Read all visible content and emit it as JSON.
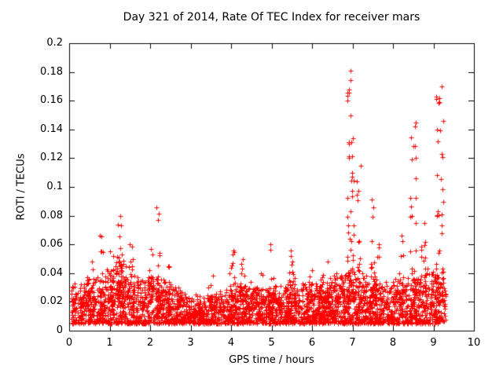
{
  "chart_data": {
    "type": "scatter",
    "title": "Day 321 of 2014, Rate Of TEC Index for receiver mars",
    "xlabel": "GPS time / hours",
    "ylabel": "ROTI / TECUs",
    "xlim": [
      0,
      10
    ],
    "ylim": [
      0,
      0.2
    ],
    "grid": false,
    "legend": "none",
    "series_name": "ROTI",
    "x_ticks": [
      0,
      1,
      2,
      3,
      4,
      5,
      6,
      7,
      8,
      9,
      10
    ],
    "x_tick_labels": [
      "0",
      "1",
      "2",
      "3",
      "4",
      "5",
      "6",
      "7",
      "8",
      "9",
      "10"
    ],
    "y_ticks": [
      0,
      0.02,
      0.04,
      0.06,
      0.08,
      0.1,
      0.12,
      0.14,
      0.16,
      0.18,
      0.2
    ],
    "y_tick_labels": [
      "0",
      "0.02",
      "0.04",
      "0.06",
      "0.08",
      "0.1",
      "0.12",
      "0.14",
      "0.16",
      "0.18",
      "0.2"
    ],
    "marker": {
      "shape": "plus",
      "color": "#ff0000",
      "size": 6
    },
    "data_coverage": {
      "x_start": 0.05,
      "x_end": 9.3
    },
    "baseline_band": {
      "points": 3200,
      "y_min": 0.005,
      "y_typical": 0.016,
      "envelope": [
        {
          "x": 0.0,
          "top": 0.03
        },
        {
          "x": 0.6,
          "top": 0.034
        },
        {
          "x": 1.3,
          "top": 0.046
        },
        {
          "x": 1.8,
          "top": 0.034
        },
        {
          "x": 2.3,
          "top": 0.034
        },
        {
          "x": 3.0,
          "top": 0.022
        },
        {
          "x": 3.8,
          "top": 0.026
        },
        {
          "x": 4.3,
          "top": 0.032
        },
        {
          "x": 5.0,
          "top": 0.028
        },
        {
          "x": 5.6,
          "top": 0.032
        },
        {
          "x": 6.3,
          "top": 0.032
        },
        {
          "x": 7.0,
          "top": 0.04
        },
        {
          "x": 7.8,
          "top": 0.032
        },
        {
          "x": 8.6,
          "top": 0.038
        },
        {
          "x": 9.2,
          "top": 0.04
        },
        {
          "x": 9.3,
          "top": 0.034
        }
      ]
    },
    "spikes": [
      {
        "x": 0.5,
        "width": 0.15,
        "peak": 0.048,
        "points": 12
      },
      {
        "x": 0.8,
        "width": 0.1,
        "peak": 0.066,
        "points": 10
      },
      {
        "x": 1.05,
        "width": 0.1,
        "peak": 0.055,
        "points": 14
      },
      {
        "x": 1.3,
        "width": 0.25,
        "peak": 0.08,
        "points": 40
      },
      {
        "x": 1.55,
        "width": 0.1,
        "peak": 0.06,
        "points": 12
      },
      {
        "x": 2.0,
        "width": 0.12,
        "peak": 0.057,
        "points": 16
      },
      {
        "x": 2.2,
        "width": 0.08,
        "peak": 0.086,
        "points": 10
      },
      {
        "x": 2.45,
        "width": 0.1,
        "peak": 0.045,
        "points": 8
      },
      {
        "x": 3.5,
        "width": 0.15,
        "peak": 0.038,
        "points": 10
      },
      {
        "x": 4.0,
        "width": 0.2,
        "peak": 0.056,
        "points": 24
      },
      {
        "x": 4.3,
        "width": 0.12,
        "peak": 0.05,
        "points": 12
      },
      {
        "x": 4.75,
        "width": 0.1,
        "peak": 0.04,
        "points": 8
      },
      {
        "x": 5.0,
        "width": 0.1,
        "peak": 0.06,
        "points": 10
      },
      {
        "x": 5.5,
        "width": 0.18,
        "peak": 0.056,
        "points": 20
      },
      {
        "x": 5.95,
        "width": 0.12,
        "peak": 0.042,
        "points": 10
      },
      {
        "x": 6.3,
        "width": 0.2,
        "peak": 0.048,
        "points": 18
      },
      {
        "x": 6.6,
        "width": 0.1,
        "peak": 0.04,
        "points": 8
      },
      {
        "x": 6.95,
        "width": 0.18,
        "peak": 0.181,
        "points": 60
      },
      {
        "x": 7.15,
        "width": 0.1,
        "peak": 0.115,
        "points": 16
      },
      {
        "x": 7.5,
        "width": 0.1,
        "peak": 0.091,
        "points": 14
      },
      {
        "x": 7.65,
        "width": 0.08,
        "peak": 0.06,
        "points": 8
      },
      {
        "x": 8.2,
        "width": 0.12,
        "peak": 0.066,
        "points": 14
      },
      {
        "x": 8.5,
        "width": 0.15,
        "peak": 0.145,
        "points": 30
      },
      {
        "x": 8.75,
        "width": 0.1,
        "peak": 0.075,
        "points": 12
      },
      {
        "x": 9.15,
        "width": 0.18,
        "peak": 0.17,
        "points": 50
      }
    ]
  }
}
